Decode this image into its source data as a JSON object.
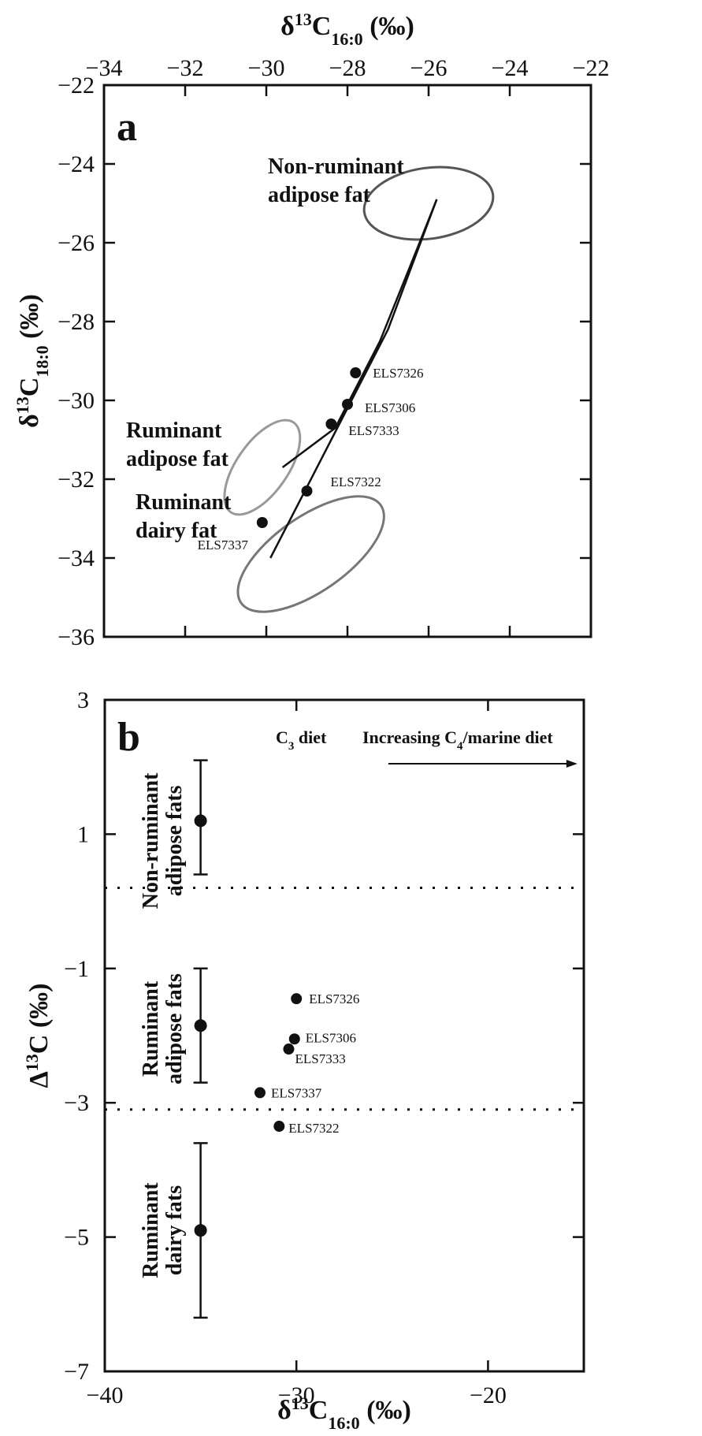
{
  "chart_data": [
    {
      "panel": "a",
      "type": "scatter",
      "xlabel": "δ13C16:0 (‰)",
      "ylabel": "δ13C18:0 (‰)",
      "x_axis_position": "top",
      "xlim": [
        -34,
        -22
      ],
      "ylim": [
        -36,
        -22
      ],
      "xticks": [
        -34,
        -32,
        -30,
        -28,
        -26,
        -24,
        -22
      ],
      "yticks": [
        -22,
        -24,
        -26,
        -28,
        -30,
        -32,
        -34,
        -36
      ],
      "grid": false,
      "points": [
        {
          "label": "ELS7326",
          "x": -27.8,
          "y": -29.3
        },
        {
          "label": "ELS7306",
          "x": -28.0,
          "y": -30.1
        },
        {
          "label": "ELS7333",
          "x": -28.4,
          "y": -30.6
        },
        {
          "label": "ELS7322",
          "x": -29.0,
          "y": -32.3
        },
        {
          "label": "ELS7337",
          "x": -30.1,
          "y": -33.1
        }
      ],
      "regions": [
        {
          "name": "Non-ruminant adipose fat",
          "label_lines": [
            "Non-ruminant",
            "adipose fat"
          ],
          "center": [
            -26.0,
            -25.0
          ],
          "radii": [
            1.6,
            0.9
          ],
          "rotation": -8,
          "color": "#555555"
        },
        {
          "name": "Ruminant adipose fat",
          "label_lines": [
            "Ruminant",
            "adipose fat"
          ],
          "center": [
            -30.1,
            -31.7
          ],
          "radii": [
            1.35,
            0.65
          ],
          "rotation": -55,
          "color": "#999999"
        },
        {
          "name": "Ruminant dairy fat",
          "label_lines": [
            "Ruminant",
            "dairy fat"
          ],
          "center": [
            -28.9,
            -33.9
          ],
          "radii": [
            2.1,
            0.95
          ],
          "rotation": -35,
          "color": "#777777"
        }
      ],
      "mixing_lines": [
        [
          [
            -25.8,
            -24.9
          ],
          [
            -26.3,
            -26.2
          ],
          [
            -27.2,
            -28.5
          ],
          [
            -28.3,
            -30.7
          ],
          [
            -29.6,
            -31.7
          ]
        ],
        [
          [
            -25.8,
            -24.9
          ],
          [
            -27.0,
            -28.2
          ],
          [
            -28.4,
            -31.0
          ],
          [
            -29.9,
            -34.0
          ]
        ]
      ],
      "panel_label": "a"
    },
    {
      "panel": "b",
      "type": "scatter",
      "xlabel": "δ13C16:0 (‰)",
      "ylabel": "Δ13C (‰)",
      "xlim": [
        -40,
        -15
      ],
      "ylim": [
        -7,
        3
      ],
      "xticks": [
        -40,
        -30,
        -20
      ],
      "yticks": [
        3,
        1,
        -1,
        -3,
        -5,
        -7
      ],
      "grid": false,
      "points": [
        {
          "label": "ELS7326",
          "x": -30.0,
          "y": -1.45
        },
        {
          "label": "ELS7306",
          "x": -30.1,
          "y": -2.05
        },
        {
          "label": "ELS7333",
          "x": -30.4,
          "y": -2.2
        },
        {
          "label": "ELS7337",
          "x": -31.9,
          "y": -2.85
        },
        {
          "label": "ELS7322",
          "x": -30.9,
          "y": -3.35
        }
      ],
      "reference_ranges": [
        {
          "name": "Non-ruminant adipose fats",
          "label_lines": [
            "Non-ruminant",
            "adipose fats"
          ],
          "x": -35,
          "mean": 1.2,
          "low": 0.4,
          "high": 2.1
        },
        {
          "name": "Ruminant adipose fats",
          "label_lines": [
            "Ruminant",
            "adipose fats"
          ],
          "x": -35,
          "mean": -1.85,
          "low": -2.7,
          "high": -1.0
        },
        {
          "name": "Ruminant dairy fats",
          "label_lines": [
            "Ruminant",
            "dairy fats"
          ],
          "x": -35,
          "mean": -4.9,
          "low": -6.2,
          "high": -3.6
        }
      ],
      "dividers_y": [
        0.2,
        -3.1
      ],
      "annotations": {
        "c3_diet": "C3 diet",
        "increasing_diet": "Increasing C4/marine diet",
        "arrow_from_x": -25.2,
        "arrow_to_x": -15.5,
        "arrow_y": 2.05
      },
      "panel_label": "b"
    }
  ]
}
